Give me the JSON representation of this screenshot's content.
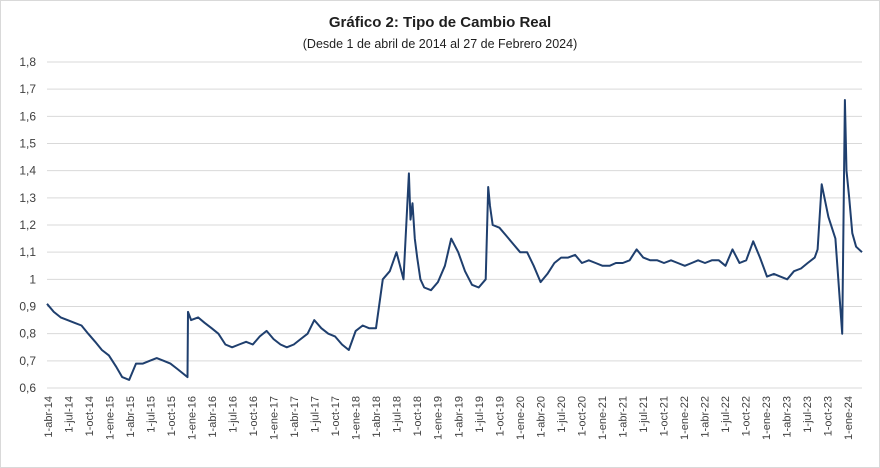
{
  "chart_data": {
    "type": "line",
    "title": "Gráfico 2: Tipo de Cambio Real",
    "subtitle": "(Desde 1 de abril de 2014 al 27 de Febrero 2024)",
    "xlabel": "",
    "ylabel": "",
    "ylim": [
      0.6,
      1.8
    ],
    "yticks": [
      "0,6",
      "0,7",
      "0,8",
      "0,9",
      "1",
      "1,1",
      "1,2",
      "1,3",
      "1,4",
      "1,5",
      "1,6",
      "1,7",
      "1,8"
    ],
    "grid": true,
    "legend": "none",
    "x_tick_labels": [
      "1-abr-14",
      "1-jul-14",
      "1-oct-14",
      "1-ene-15",
      "1-abr-15",
      "1-jul-15",
      "1-oct-15",
      "1-ene-16",
      "1-abr-16",
      "1-jul-16",
      "1-oct-16",
      "1-ene-17",
      "1-abr-17",
      "1-jul-17",
      "1-oct-17",
      "1-ene-18",
      "1-abr-18",
      "1-jul-18",
      "1-oct-18",
      "1-ene-19",
      "1-abr-19",
      "1-jul-19",
      "1-oct-19",
      "1-ene-20",
      "1-abr-20",
      "1-jul-20",
      "1-oct-20",
      "1-ene-21",
      "1-abr-21",
      "1-jul-21",
      "1-oct-21",
      "1-ene-22",
      "1-abr-22",
      "1-jul-22",
      "1-oct-22",
      "1-ene-23",
      "1-abr-23",
      "1-jul-23",
      "1-oct-23",
      "1-ene-24"
    ],
    "series": [
      {
        "color": "#1f3f6e",
        "x": [
          "2014-04-01",
          "2014-05-01",
          "2014-06-01",
          "2014-07-01",
          "2014-08-01",
          "2014-09-01",
          "2014-10-01",
          "2014-11-01",
          "2014-12-01",
          "2015-01-01",
          "2015-02-01",
          "2015-03-01",
          "2015-04-01",
          "2015-05-01",
          "2015-06-01",
          "2015-07-01",
          "2015-08-01",
          "2015-09-01",
          "2015-10-01",
          "2015-11-01",
          "2015-12-01",
          "2015-12-16",
          "2015-12-18",
          "2016-01-01",
          "2016-02-01",
          "2016-03-01",
          "2016-04-01",
          "2016-05-01",
          "2016-06-01",
          "2016-07-01",
          "2016-08-01",
          "2016-09-01",
          "2016-10-01",
          "2016-11-01",
          "2016-12-01",
          "2017-01-01",
          "2017-02-01",
          "2017-03-01",
          "2017-04-01",
          "2017-05-01",
          "2017-06-01",
          "2017-07-01",
          "2017-08-01",
          "2017-09-01",
          "2017-10-01",
          "2017-11-01",
          "2017-12-01",
          "2018-01-01",
          "2018-02-01",
          "2018-03-01",
          "2018-04-01",
          "2018-05-01",
          "2018-06-01",
          "2018-07-01",
          "2018-08-01",
          "2018-08-25",
          "2018-09-01",
          "2018-09-10",
          "2018-09-20",
          "2018-10-01",
          "2018-10-15",
          "2018-11-01",
          "2018-12-01",
          "2019-01-01",
          "2019-02-01",
          "2019-03-01",
          "2019-04-01",
          "2019-05-01",
          "2019-06-01",
          "2019-07-01",
          "2019-08-01",
          "2019-08-12",
          "2019-08-20",
          "2019-09-01",
          "2019-10-01",
          "2019-11-01",
          "2019-12-01",
          "2020-01-01",
          "2020-02-01",
          "2020-03-01",
          "2020-04-01",
          "2020-05-01",
          "2020-06-01",
          "2020-07-01",
          "2020-08-01",
          "2020-09-01",
          "2020-10-01",
          "2020-11-01",
          "2020-12-01",
          "2021-01-01",
          "2021-02-01",
          "2021-03-01",
          "2021-04-01",
          "2021-05-01",
          "2021-06-01",
          "2021-07-01",
          "2021-08-01",
          "2021-09-01",
          "2021-10-01",
          "2021-11-01",
          "2021-12-01",
          "2022-01-01",
          "2022-02-01",
          "2022-03-01",
          "2022-04-01",
          "2022-05-01",
          "2022-06-01",
          "2022-07-01",
          "2022-08-01",
          "2022-09-01",
          "2022-10-01",
          "2022-11-01",
          "2022-12-01",
          "2023-01-01",
          "2023-02-01",
          "2023-03-01",
          "2023-04-01",
          "2023-05-01",
          "2023-06-01",
          "2023-07-01",
          "2023-08-01",
          "2023-08-14",
          "2023-09-01",
          "2023-10-01",
          "2023-11-01",
          "2023-12-01",
          "2023-12-13",
          "2023-12-20",
          "2024-01-01",
          "2024-01-15",
          "2024-02-01",
          "2024-02-27"
        ],
        "values": [
          0.91,
          0.88,
          0.86,
          0.85,
          0.84,
          0.83,
          0.8,
          0.77,
          0.74,
          0.72,
          0.68,
          0.64,
          0.63,
          0.69,
          0.69,
          0.7,
          0.71,
          0.7,
          0.69,
          0.67,
          0.65,
          0.64,
          0.88,
          0.85,
          0.86,
          0.84,
          0.82,
          0.8,
          0.76,
          0.75,
          0.76,
          0.77,
          0.76,
          0.79,
          0.81,
          0.78,
          0.76,
          0.75,
          0.76,
          0.78,
          0.8,
          0.85,
          0.82,
          0.8,
          0.79,
          0.76,
          0.74,
          0.81,
          0.83,
          0.82,
          0.82,
          1.0,
          1.03,
          1.1,
          1.0,
          1.39,
          1.22,
          1.28,
          1.15,
          1.08,
          1.0,
          0.97,
          0.96,
          0.99,
          1.05,
          1.15,
          1.1,
          1.03,
          0.98,
          0.97,
          1.0,
          1.34,
          1.27,
          1.2,
          1.19,
          1.16,
          1.13,
          1.1,
          1.1,
          1.05,
          0.99,
          1.02,
          1.06,
          1.08,
          1.08,
          1.09,
          1.06,
          1.07,
          1.06,
          1.05,
          1.05,
          1.06,
          1.06,
          1.07,
          1.11,
          1.08,
          1.07,
          1.07,
          1.06,
          1.07,
          1.06,
          1.05,
          1.06,
          1.07,
          1.06,
          1.07,
          1.07,
          1.05,
          1.11,
          1.06,
          1.07,
          1.14,
          1.08,
          1.01,
          1.02,
          1.01,
          1.0,
          1.03,
          1.04,
          1.06,
          1.08,
          1.11,
          1.35,
          1.23,
          1.15,
          0.8,
          1.66,
          1.4,
          1.3,
          1.17,
          1.12,
          1.1
        ]
      }
    ]
  }
}
